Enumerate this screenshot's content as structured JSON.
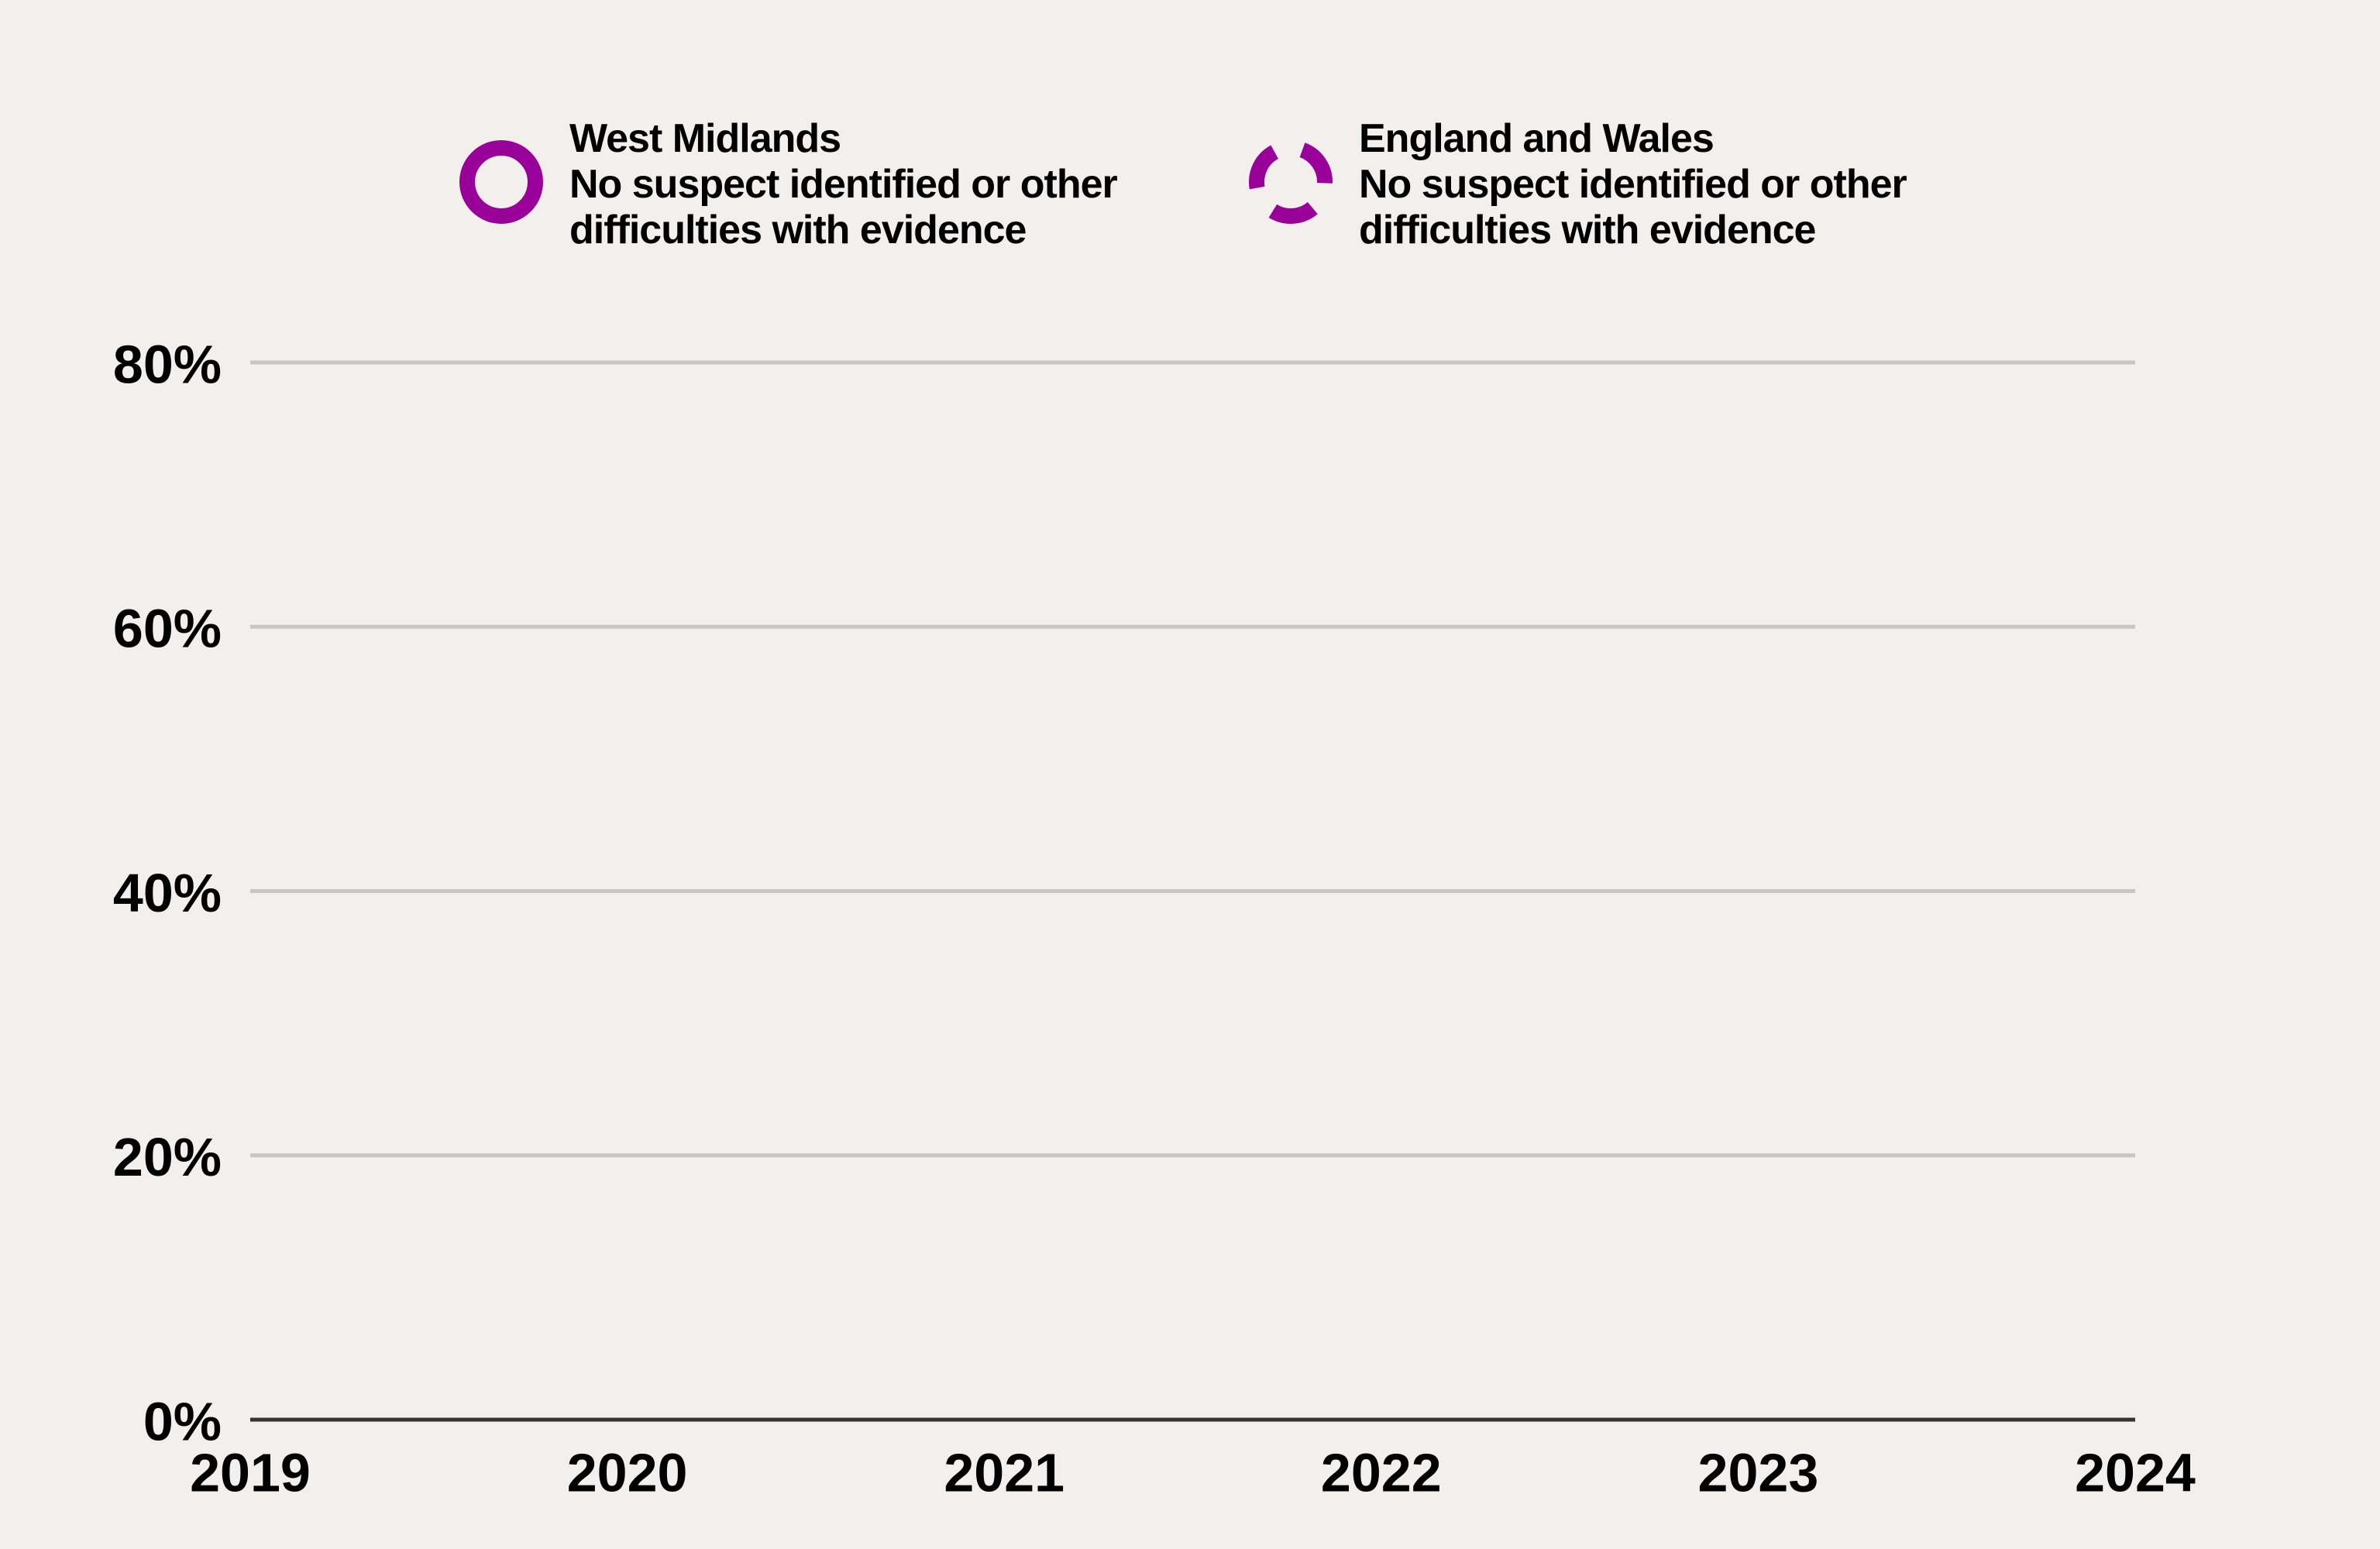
{
  "chart_data": {
    "type": "line",
    "x": [
      2019,
      2020,
      2021,
      2022,
      2023,
      2024
    ],
    "xlim": [
      2019,
      2024
    ],
    "xticks": [
      2019,
      2020,
      2021,
      2022,
      2023,
      2024
    ],
    "ylim": [
      0,
      80
    ],
    "yticks": [
      {
        "value": 0,
        "label": "0%"
      },
      {
        "value": 20,
        "label": "20%"
      },
      {
        "value": 40,
        "label": "40%"
      },
      {
        "value": 60,
        "label": "60%"
      },
      {
        "value": 80,
        "label": "80%"
      }
    ],
    "grid": true,
    "legend": "top",
    "series": [
      {
        "name": "West Midlands\nNo suspect identified or other\ndifficulties with evidence",
        "color": "#990099",
        "dashed": false,
        "values": [
          null,
          null,
          null,
          null,
          null,
          null
        ]
      },
      {
        "name": "England and Wales\nNo suspect identified or other\ndifficulties with evidence",
        "color": "#990099",
        "dashed": true,
        "values": [
          null,
          null,
          null,
          null,
          null,
          null
        ]
      }
    ]
  }
}
